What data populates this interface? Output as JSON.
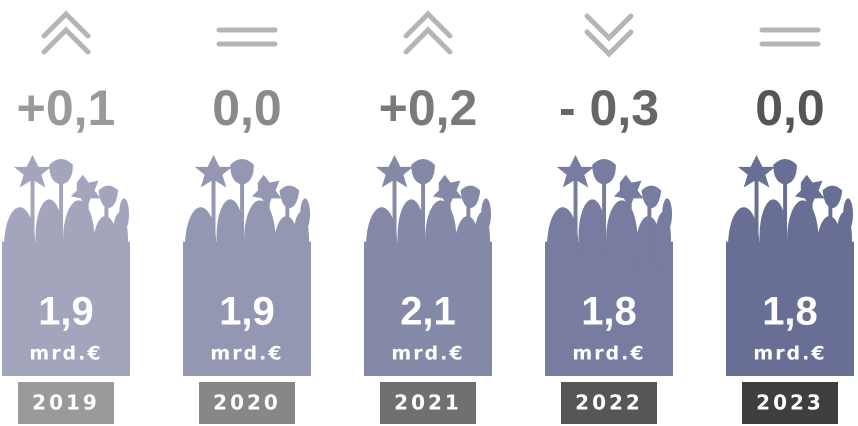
{
  "chart_data": {
    "type": "pictogram",
    "categories": [
      "2019",
      "2020",
      "2021",
      "2022",
      "2023"
    ],
    "values": [
      1.9,
      1.9,
      2.1,
      1.8,
      1.8
    ],
    "value_labels": [
      "1,9",
      "1,9",
      "2,1",
      "1,8",
      "1,8"
    ],
    "unit": "mrd.€",
    "changes": [
      0.1,
      0,
      0.2,
      -0.3,
      0
    ],
    "change_labels": [
      "+0,1",
      "0,0",
      "+0,2",
      "- 0,3",
      "0,0"
    ],
    "colors": [
      "#a2a5bc",
      "#9397b1",
      "#8589a8",
      "#777ca0",
      "#696e94"
    ],
    "year_colors": [
      "#9a9a9a",
      "#878787",
      "#707070",
      "#565656",
      "#3e3e3e"
    ],
    "change_colors": [
      "#9a9a9a",
      "#8a8a8a",
      "#7a7a7a",
      "#666666",
      "#555555"
    ]
  }
}
